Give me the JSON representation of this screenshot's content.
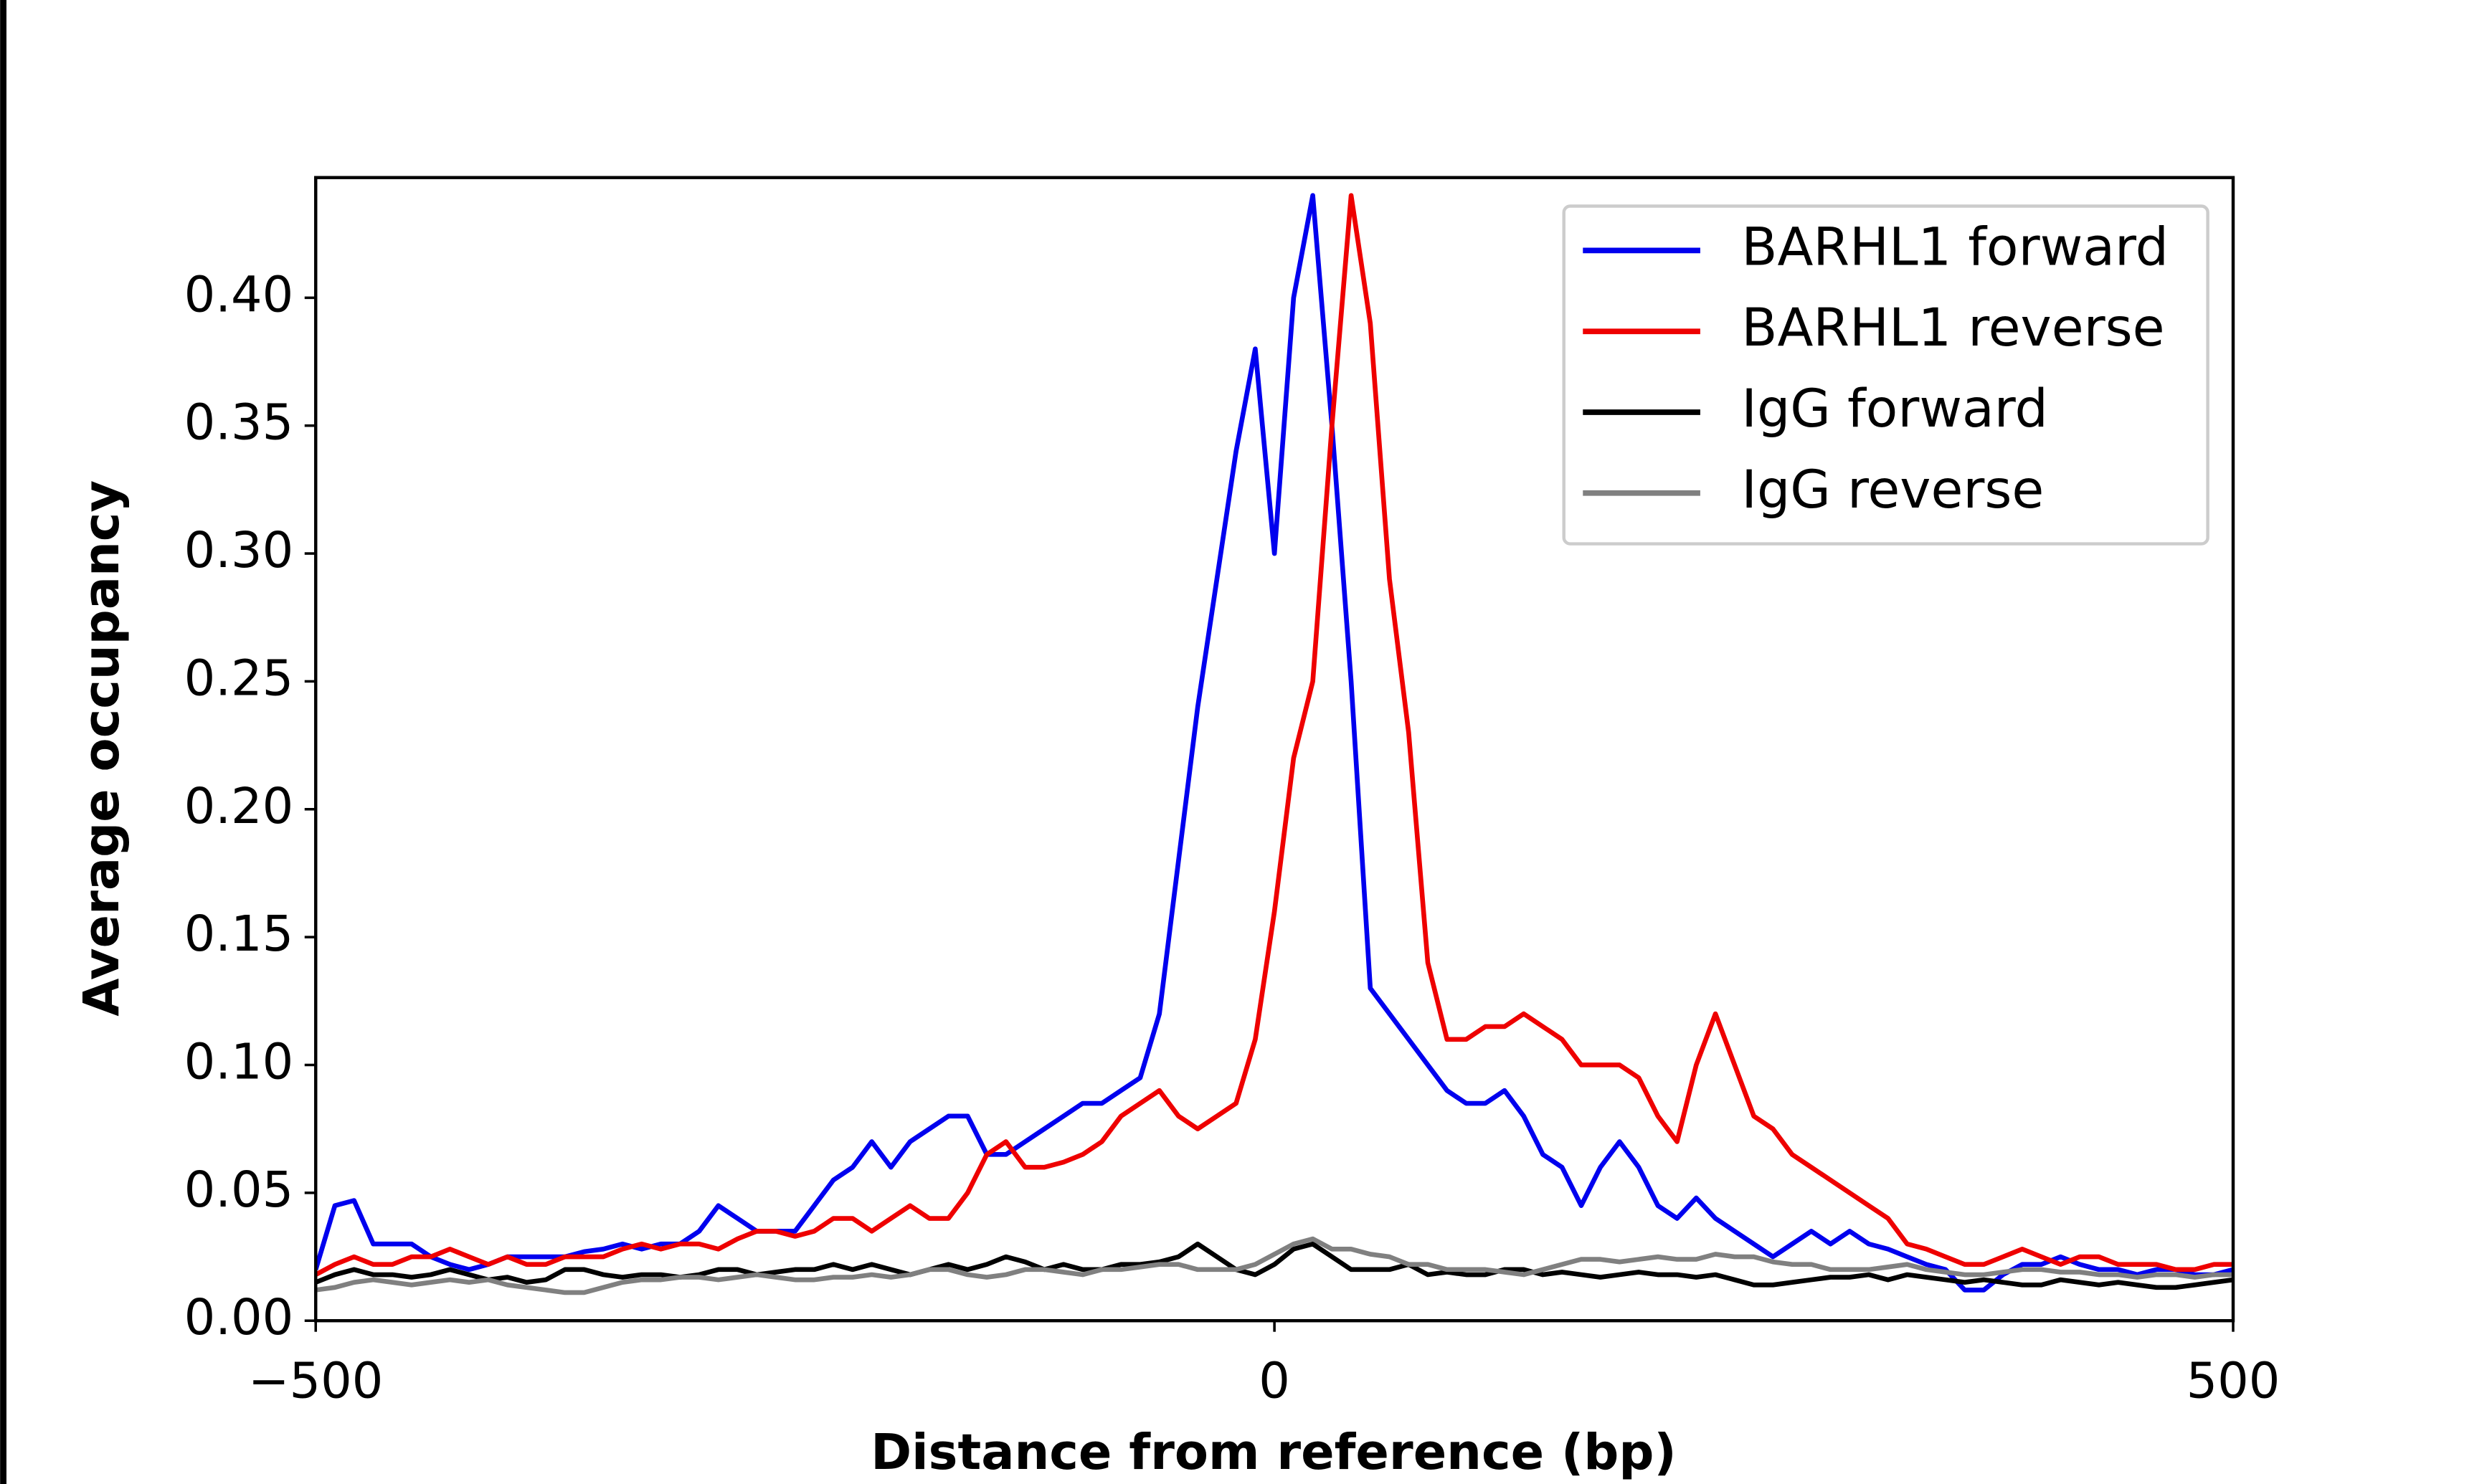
{
  "chart_data": {
    "type": "line",
    "xlabel": "Distance from reference (bp)",
    "ylabel": "Average occupancy",
    "xlim": [
      -500,
      500
    ],
    "ylim": [
      0,
      0.447
    ],
    "xticks": [
      {
        "value": -500,
        "label": "−500"
      },
      0,
      500
    ],
    "yticks": [
      {
        "value": 0,
        "label": "0.00"
      },
      {
        "value": 0.05,
        "label": "0.05"
      },
      {
        "value": 0.1,
        "label": "0.10"
      },
      {
        "value": 0.15,
        "label": "0.15"
      },
      {
        "value": 0.2,
        "label": "0.20"
      },
      {
        "value": 0.25,
        "label": "0.25"
      },
      {
        "value": 0.3,
        "label": "0.30"
      },
      {
        "value": 0.35,
        "label": "0.35"
      },
      {
        "value": 0.4,
        "label": "0.40"
      }
    ],
    "legend": "upper right",
    "x": [
      -500,
      -490,
      -480,
      -470,
      -460,
      -450,
      -440,
      -430,
      -420,
      -410,
      -400,
      -390,
      -380,
      -370,
      -360,
      -350,
      -340,
      -330,
      -320,
      -310,
      -300,
      -290,
      -280,
      -270,
      -260,
      -250,
      -240,
      -230,
      -220,
      -210,
      -200,
      -190,
      -180,
      -170,
      -160,
      -150,
      -140,
      -130,
      -120,
      -110,
      -100,
      -90,
      -80,
      -70,
      -60,
      -50,
      -40,
      -30,
      -20,
      -10,
      0,
      10,
      20,
      30,
      40,
      50,
      60,
      70,
      80,
      90,
      100,
      110,
      120,
      130,
      140,
      150,
      160,
      170,
      180,
      190,
      200,
      210,
      220,
      230,
      240,
      250,
      260,
      270,
      280,
      290,
      300,
      310,
      320,
      330,
      340,
      350,
      360,
      370,
      380,
      390,
      400,
      410,
      420,
      430,
      440,
      450,
      460,
      470,
      480,
      490,
      500
    ],
    "series": [
      {
        "name": "BARHL1 forward",
        "color": "#0000ee",
        "values": [
          0.02,
          0.045,
          0.047,
          0.03,
          0.03,
          0.03,
          0.025,
          0.022,
          0.02,
          0.022,
          0.025,
          0.025,
          0.025,
          0.025,
          0.027,
          0.028,
          0.03,
          0.028,
          0.03,
          0.03,
          0.035,
          0.045,
          0.04,
          0.035,
          0.035,
          0.035,
          0.045,
          0.055,
          0.06,
          0.07,
          0.06,
          0.07,
          0.075,
          0.08,
          0.08,
          0.065,
          0.065,
          0.07,
          0.075,
          0.08,
          0.085,
          0.085,
          0.09,
          0.095,
          0.12,
          0.18,
          0.24,
          0.29,
          0.34,
          0.38,
          0.3,
          0.4,
          0.44,
          0.35,
          0.25,
          0.13,
          0.12,
          0.11,
          0.1,
          0.09,
          0.085,
          0.085,
          0.09,
          0.08,
          0.065,
          0.06,
          0.045,
          0.06,
          0.07,
          0.06,
          0.045,
          0.04,
          0.048,
          0.04,
          0.035,
          0.03,
          0.025,
          0.03,
          0.035,
          0.03,
          0.035,
          0.03,
          0.028,
          0.025,
          0.022,
          0.02,
          0.012,
          0.012,
          0.018,
          0.022,
          0.022,
          0.025,
          0.022,
          0.02,
          0.02,
          0.018,
          0.02,
          0.02,
          0.018,
          0.018,
          0.02
        ]
      },
      {
        "name": "BARHL1 reverse",
        "color": "#ee0000",
        "values": [
          0.018,
          0.022,
          0.025,
          0.022,
          0.022,
          0.025,
          0.025,
          0.028,
          0.025,
          0.022,
          0.025,
          0.022,
          0.022,
          0.025,
          0.025,
          0.025,
          0.028,
          0.03,
          0.028,
          0.03,
          0.03,
          0.028,
          0.032,
          0.035,
          0.035,
          0.033,
          0.035,
          0.04,
          0.04,
          0.035,
          0.04,
          0.045,
          0.04,
          0.04,
          0.05,
          0.065,
          0.07,
          0.06,
          0.06,
          0.062,
          0.065,
          0.07,
          0.08,
          0.085,
          0.09,
          0.08,
          0.075,
          0.08,
          0.085,
          0.11,
          0.16,
          0.22,
          0.25,
          0.35,
          0.44,
          0.39,
          0.29,
          0.23,
          0.14,
          0.11,
          0.11,
          0.115,
          0.115,
          0.12,
          0.115,
          0.11,
          0.1,
          0.1,
          0.1,
          0.095,
          0.08,
          0.07,
          0.1,
          0.12,
          0.1,
          0.08,
          0.075,
          0.065,
          0.06,
          0.055,
          0.05,
          0.045,
          0.04,
          0.03,
          0.028,
          0.025,
          0.022,
          0.022,
          0.025,
          0.028,
          0.025,
          0.022,
          0.025,
          0.025,
          0.022,
          0.022,
          0.022,
          0.02,
          0.02,
          0.022,
          0.022
        ]
      },
      {
        "name": "IgG forward",
        "color": "#000000",
        "values": [
          0.015,
          0.018,
          0.02,
          0.018,
          0.018,
          0.017,
          0.018,
          0.02,
          0.018,
          0.016,
          0.017,
          0.015,
          0.016,
          0.02,
          0.02,
          0.018,
          0.017,
          0.018,
          0.018,
          0.017,
          0.018,
          0.02,
          0.02,
          0.018,
          0.019,
          0.02,
          0.02,
          0.022,
          0.02,
          0.022,
          0.02,
          0.018,
          0.02,
          0.022,
          0.02,
          0.022,
          0.025,
          0.023,
          0.02,
          0.022,
          0.02,
          0.02,
          0.022,
          0.022,
          0.023,
          0.025,
          0.03,
          0.025,
          0.02,
          0.018,
          0.022,
          0.028,
          0.03,
          0.025,
          0.02,
          0.02,
          0.02,
          0.022,
          0.018,
          0.019,
          0.018,
          0.018,
          0.02,
          0.02,
          0.018,
          0.019,
          0.018,
          0.017,
          0.018,
          0.019,
          0.018,
          0.018,
          0.017,
          0.018,
          0.016,
          0.014,
          0.014,
          0.015,
          0.016,
          0.017,
          0.017,
          0.018,
          0.016,
          0.018,
          0.017,
          0.016,
          0.015,
          0.016,
          0.015,
          0.014,
          0.014,
          0.016,
          0.015,
          0.014,
          0.015,
          0.014,
          0.013,
          0.013,
          0.014,
          0.015,
          0.016
        ]
      },
      {
        "name": "IgG reverse",
        "color": "#808080",
        "values": [
          0.012,
          0.013,
          0.015,
          0.016,
          0.015,
          0.014,
          0.015,
          0.016,
          0.015,
          0.016,
          0.014,
          0.013,
          0.012,
          0.011,
          0.011,
          0.013,
          0.015,
          0.016,
          0.016,
          0.017,
          0.017,
          0.016,
          0.017,
          0.018,
          0.017,
          0.016,
          0.016,
          0.017,
          0.017,
          0.018,
          0.017,
          0.018,
          0.02,
          0.02,
          0.018,
          0.017,
          0.018,
          0.02,
          0.02,
          0.019,
          0.018,
          0.02,
          0.02,
          0.021,
          0.022,
          0.022,
          0.02,
          0.02,
          0.02,
          0.022,
          0.026,
          0.03,
          0.032,
          0.028,
          0.028,
          0.026,
          0.025,
          0.022,
          0.022,
          0.02,
          0.02,
          0.02,
          0.019,
          0.018,
          0.02,
          0.022,
          0.024,
          0.024,
          0.023,
          0.024,
          0.025,
          0.024,
          0.024,
          0.026,
          0.025,
          0.025,
          0.023,
          0.022,
          0.022,
          0.02,
          0.02,
          0.02,
          0.021,
          0.022,
          0.02,
          0.019,
          0.018,
          0.018,
          0.019,
          0.02,
          0.02,
          0.019,
          0.019,
          0.018,
          0.018,
          0.017,
          0.018,
          0.018,
          0.017,
          0.018,
          0.018
        ]
      }
    ]
  }
}
